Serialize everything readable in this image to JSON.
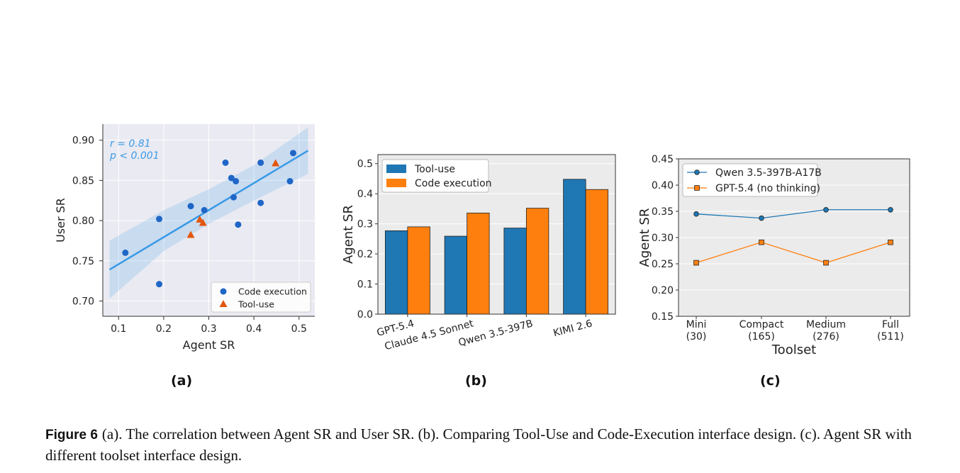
{
  "panels": [
    {
      "label": "(a)"
    },
    {
      "label": "(b)"
    },
    {
      "label": "(c)"
    }
  ],
  "caption": {
    "label": "Figure 6",
    "text": "(a). The correlation between Agent SR and User SR. (b). Comparing Tool-Use and Code-Execution interface design. (c). Agent SR with different toolset interface design."
  },
  "chart_data": [
    {
      "type": "scatter",
      "xlabel": "Agent SR",
      "ylabel": "User SR",
      "xlim": [
        0.065,
        0.535
      ],
      "ylim": [
        0.681,
        0.92
      ],
      "xticks": [
        "0.1",
        "0.2",
        "0.3",
        "0.4",
        "0.5"
      ],
      "yticks": [
        "0.70",
        "0.75",
        "0.80",
        "0.85",
        "0.90"
      ],
      "grid": true,
      "legend_position": "bottom-right",
      "annotation": [
        "r = 0.81",
        "p < 0.001"
      ],
      "regression": {
        "x": [
          0.08,
          0.52
        ],
        "y": [
          0.739,
          0.887
        ]
      },
      "series": [
        {
          "name": "Code execution",
          "marker": "circle",
          "color": "#1f66c7",
          "x": [
            0.115,
            0.19,
            0.19,
            0.26,
            0.29,
            0.337,
            0.35,
            0.355,
            0.36,
            0.365,
            0.415,
            0.415,
            0.48,
            0.487
          ],
          "y": [
            0.76,
            0.802,
            0.721,
            0.818,
            0.813,
            0.872,
            0.853,
            0.829,
            0.849,
            0.795,
            0.872,
            0.822,
            0.849,
            0.884
          ]
        },
        {
          "name": "Tool-use",
          "marker": "triangle",
          "color": "#e2570f",
          "x": [
            0.26,
            0.28,
            0.287,
            0.448
          ],
          "y": [
            0.782,
            0.801,
            0.797,
            0.871
          ]
        }
      ],
      "confidence_band": {
        "x": [
          0.08,
          0.2,
          0.3,
          0.4,
          0.52
        ],
        "upper": [
          0.775,
          0.813,
          0.839,
          0.869,
          0.916
        ],
        "lower": [
          0.703,
          0.762,
          0.796,
          0.825,
          0.858
        ]
      }
    },
    {
      "type": "bar",
      "ylabel": "Agent SR",
      "ylim": [
        0,
        0.53
      ],
      "yticks": [
        "0.0",
        "0.1",
        "0.2",
        "0.3",
        "0.4",
        "0.5"
      ],
      "categories": [
        "GPT-5.4",
        "Claude 4.5 Sonnet",
        "Qwen 3.5-397B",
        "KIMI 2.6"
      ],
      "legend_position": "top-left",
      "series": [
        {
          "name": "Tool-use",
          "color": "#1f77b4",
          "values": [
            0.277,
            0.259,
            0.286,
            0.448
          ]
        },
        {
          "name": "Code execution",
          "color": "#ff7f0e",
          "values": [
            0.29,
            0.336,
            0.352,
            0.414
          ]
        }
      ]
    },
    {
      "type": "line",
      "xlabel": "Toolset",
      "ylabel": "Agent SR",
      "ylim": [
        0.15,
        0.45
      ],
      "yticks": [
        "0.15",
        "0.20",
        "0.25",
        "0.30",
        "0.35",
        "0.40",
        "0.45"
      ],
      "categories": [
        {
          "name": "Mini",
          "count": "(30)"
        },
        {
          "name": "Compact",
          "count": "(165)"
        },
        {
          "name": "Medium",
          "count": "(276)"
        },
        {
          "name": "Full",
          "count": "(511)"
        }
      ],
      "legend_position": "top-left",
      "series": [
        {
          "name": "Qwen 3.5-397B-A17B",
          "marker": "circle",
          "color": "#1f77b4",
          "values": [
            0.345,
            0.337,
            0.353,
            0.353
          ]
        },
        {
          "name": "GPT-5.4 (no thinking)",
          "marker": "square",
          "color": "#ff7f0e",
          "values": [
            0.252,
            0.291,
            0.252,
            0.291
          ]
        }
      ]
    }
  ]
}
